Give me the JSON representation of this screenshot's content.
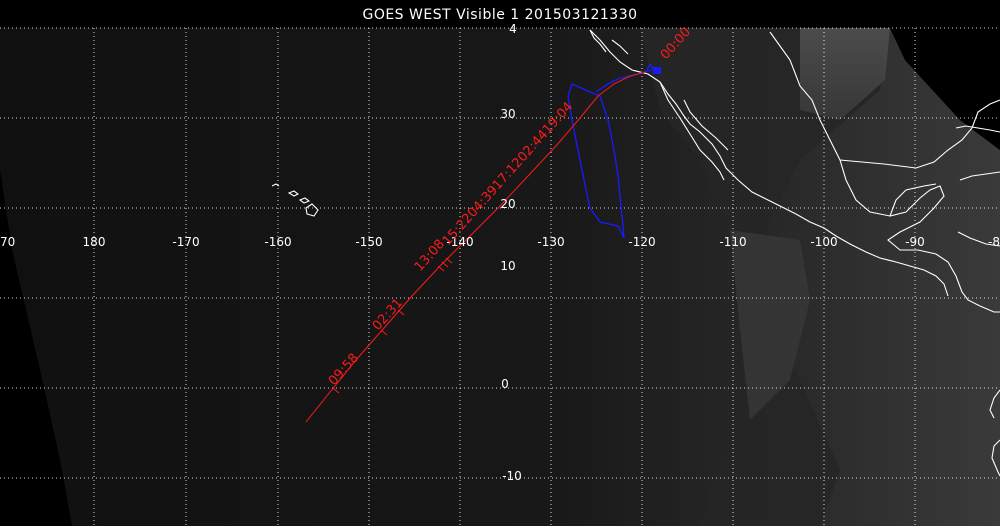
{
  "title": "GOES WEST Visible 1 201503121330",
  "lon_labels": [
    "70",
    "180",
    "-170",
    "-160",
    "-150",
    "-140",
    "-130",
    "-120",
    "-110",
    "-100",
    "-90",
    "-8"
  ],
  "lat_labels": [
    "30",
    "20",
    "10",
    "0",
    "-10"
  ],
  "lat_label_top": "4",
  "track_labels": [
    "09:58",
    "02:31",
    "13:08",
    "00:00"
  ],
  "track_label_mid": "15:2204:3917:1202:4419:04",
  "colors": {
    "track": "#ff1a1a",
    "loop": "#1a1aff",
    "coast": "#ffffff",
    "grid": "#ffffff",
    "background": "#000000"
  }
}
